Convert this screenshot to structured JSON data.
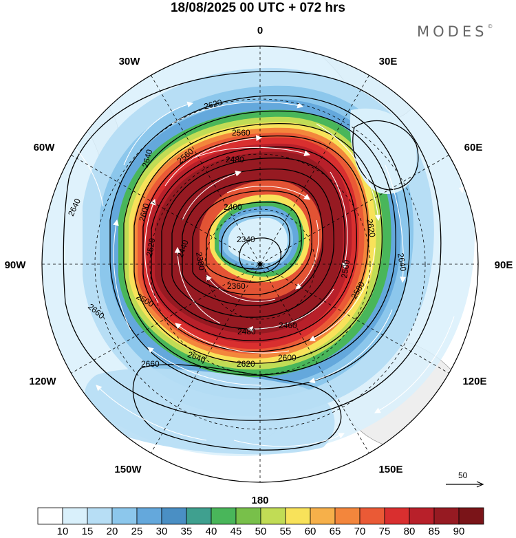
{
  "title": "18/08/2025  00 UTC  + 072 hrs",
  "brand": "MODES",
  "brand_mark": "©",
  "longitude_labels": {
    "n0": "0",
    "e30": "30E",
    "e60": "60E",
    "e90": "90E",
    "e120": "120E",
    "e150": "150E",
    "s180": "180",
    "w150": "150W",
    "w120": "120W",
    "w90": "90W",
    "w60": "60W",
    "w30": "30W"
  },
  "contour_labels": [
    "2340",
    "2360",
    "2380",
    "2400",
    "2440",
    "2460",
    "2480",
    "2480",
    "2500",
    "2500",
    "2520",
    "2560",
    "2560",
    "2580",
    "2600",
    "2600",
    "2620",
    "2620",
    "2620",
    "2640",
    "2640",
    "2640",
    "2640",
    "2660",
    "2660"
  ],
  "wind_reference": {
    "value": "50"
  },
  "colorbar": {
    "colors": [
      "#ffffff",
      "#d9f0fb",
      "#b7def5",
      "#8cc7ec",
      "#64a8dc",
      "#4a8fc4",
      "#3fa08f",
      "#49b65a",
      "#78c04a",
      "#c1dc55",
      "#f8e25a",
      "#f6b04a",
      "#f3863c",
      "#ea5a36",
      "#d92f2f",
      "#b8202a",
      "#961a22",
      "#7a1418"
    ],
    "ticks": [
      "10",
      "15",
      "20",
      "25",
      "30",
      "35",
      "40",
      "45",
      "50",
      "55",
      "60",
      "65",
      "70",
      "75",
      "80",
      "85",
      "90"
    ]
  }
}
